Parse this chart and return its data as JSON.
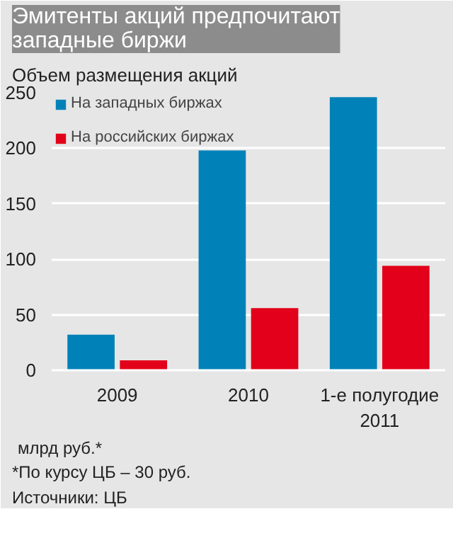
{
  "chart_data": {
    "type": "bar",
    "title": "Эмитенты акций предпочитают западные биржи",
    "subtitle": "Объем размещения акций",
    "ylabel": "млрд руб.*",
    "categories": [
      "2009",
      "2010",
      "1-е полугодие 2011"
    ],
    "series": [
      {
        "name": "На западных биржах",
        "color": "#0082b8",
        "values": [
          32,
          198,
          246
        ]
      },
      {
        "name": "На российских биржах",
        "color": "#e2001a",
        "values": [
          9,
          56,
          94
        ]
      }
    ],
    "ylim": [
      0,
      250
    ],
    "yticks": [
      0,
      50,
      100,
      150,
      200,
      250
    ],
    "grid": "y",
    "legend": "top left",
    "annotations": [
      "*По курсу ЦБ – 30 руб.",
      "Источники: ЦБ"
    ]
  }
}
